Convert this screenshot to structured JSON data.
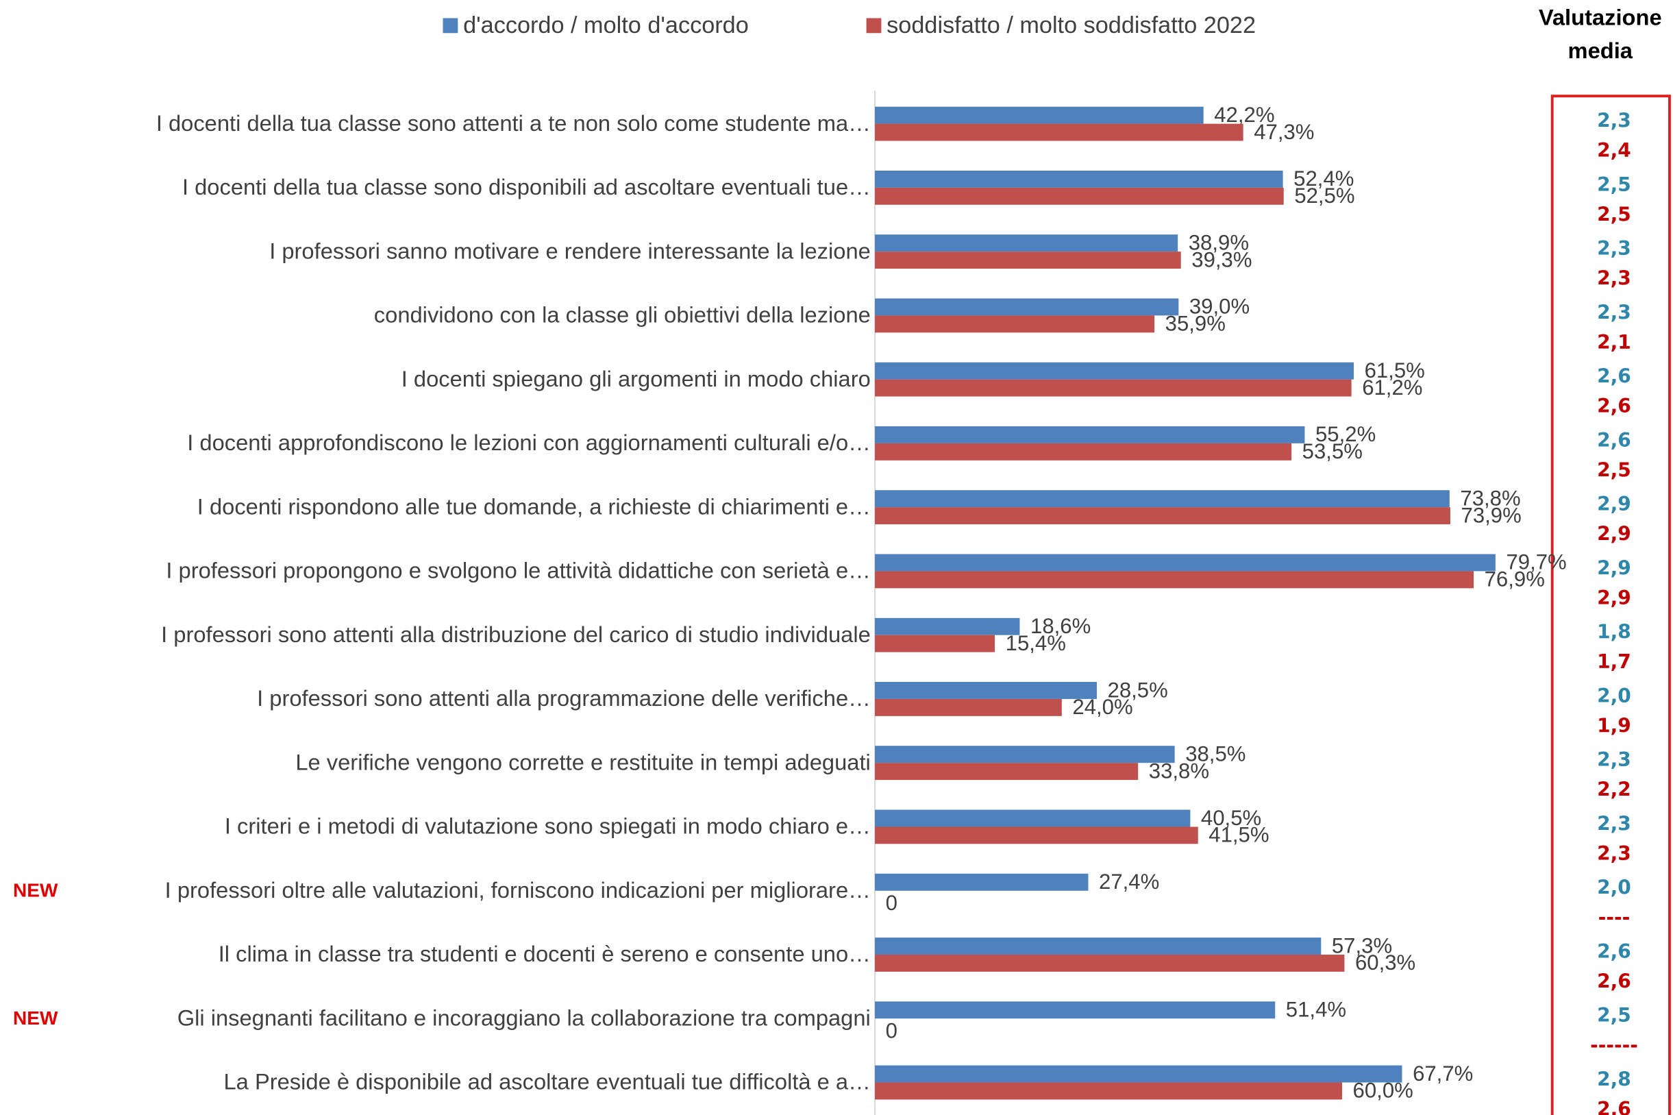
{
  "chart_data": {
    "type": "hbar",
    "categories": [
      "I docenti della tua classe sono attenti a te non solo come studente ma…",
      "I docenti della tua classe sono disponibili ad ascoltare eventuali tue…",
      "I professori sanno motivare e rendere interessante la lezione",
      "condividono con la classe gli obiettivi della lezione",
      "I docenti spiegano gli argomenti in modo chiaro",
      "I docenti approfondiscono le lezioni con aggiornamenti culturali e/o…",
      "I docenti rispondono alle tue domande, a richieste di chiarimenti e…",
      "I professori propongono e svolgono le attività didattiche con serietà e…",
      "I professori sono attenti alla distribuzione del carico di studio individuale",
      "I professori sono attenti alla programmazione delle verifiche…",
      "Le verifiche vengono corrette e restituite in tempi adeguati",
      "I criteri e i metodi di valutazione sono spiegati in modo chiaro e…",
      "I professori oltre alle valutazioni, forniscono indicazioni per migliorare…",
      "Il clima in classe tra studenti e docenti è sereno e consente uno…",
      "Gli insegnanti facilitano e incoraggiano la collaborazione tra compagni",
      "La Preside è disponibile ad ascoltare eventuali tue difficoltà e a…"
    ],
    "series": [
      {
        "name": "d'accordo / molto d'accordo",
        "color": "#4f81bd",
        "values": [
          42.2,
          52.4,
          38.9,
          39.0,
          61.5,
          55.2,
          73.8,
          79.7,
          18.6,
          28.5,
          38.5,
          40.5,
          27.4,
          57.3,
          51.4,
          67.7
        ],
        "value_labels": [
          "42,2%",
          "52,4%",
          "38,9%",
          "39,0%",
          "61,5%",
          "55,2%",
          "73,8%",
          "79,7%",
          "18,6%",
          "28,5%",
          "38,5%",
          "40,5%",
          "27,4%",
          "57,3%",
          "51,4%",
          "67,7%"
        ]
      },
      {
        "name": "soddisfatto / molto soddisfatto 2022",
        "color": "#c0504d",
        "values": [
          47.3,
          52.5,
          39.3,
          35.9,
          61.2,
          53.5,
          73.9,
          76.9,
          15.4,
          24.0,
          33.8,
          41.5,
          0,
          60.3,
          0,
          60.0
        ],
        "value_labels": [
          "47,3%",
          "52,5%",
          "39,3%",
          "35,9%",
          "61,2%",
          "53,5%",
          "73,9%",
          "76,9%",
          "15,4%",
          "24,0%",
          "33,8%",
          "41,5%",
          "0",
          "60,3%",
          "0",
          "60,0%"
        ]
      }
    ],
    "xlim": [
      0,
      100
    ],
    "notes": [
      null,
      null,
      null,
      null,
      null,
      null,
      null,
      null,
      null,
      null,
      null,
      null,
      "NEW",
      null,
      "NEW",
      null
    ],
    "average_rating": {
      "title": [
        "Valutazione",
        "media"
      ],
      "agree": [
        "2,3",
        "2,5",
        "2,3",
        "2,3",
        "2,6",
        "2,6",
        "2,9",
        "2,9",
        "1,8",
        "2,0",
        "2,3",
        "2,3",
        "2,0",
        "2,6",
        "2,5",
        "2,8"
      ],
      "satisfied": [
        "2,4",
        "2,5",
        "2,3",
        "2,1",
        "2,6",
        "2,5",
        "2,9",
        "2,9",
        "1,7",
        "1,9",
        "2,2",
        "2,3",
        "----",
        "2,6",
        "------",
        "2,6"
      ]
    }
  }
}
